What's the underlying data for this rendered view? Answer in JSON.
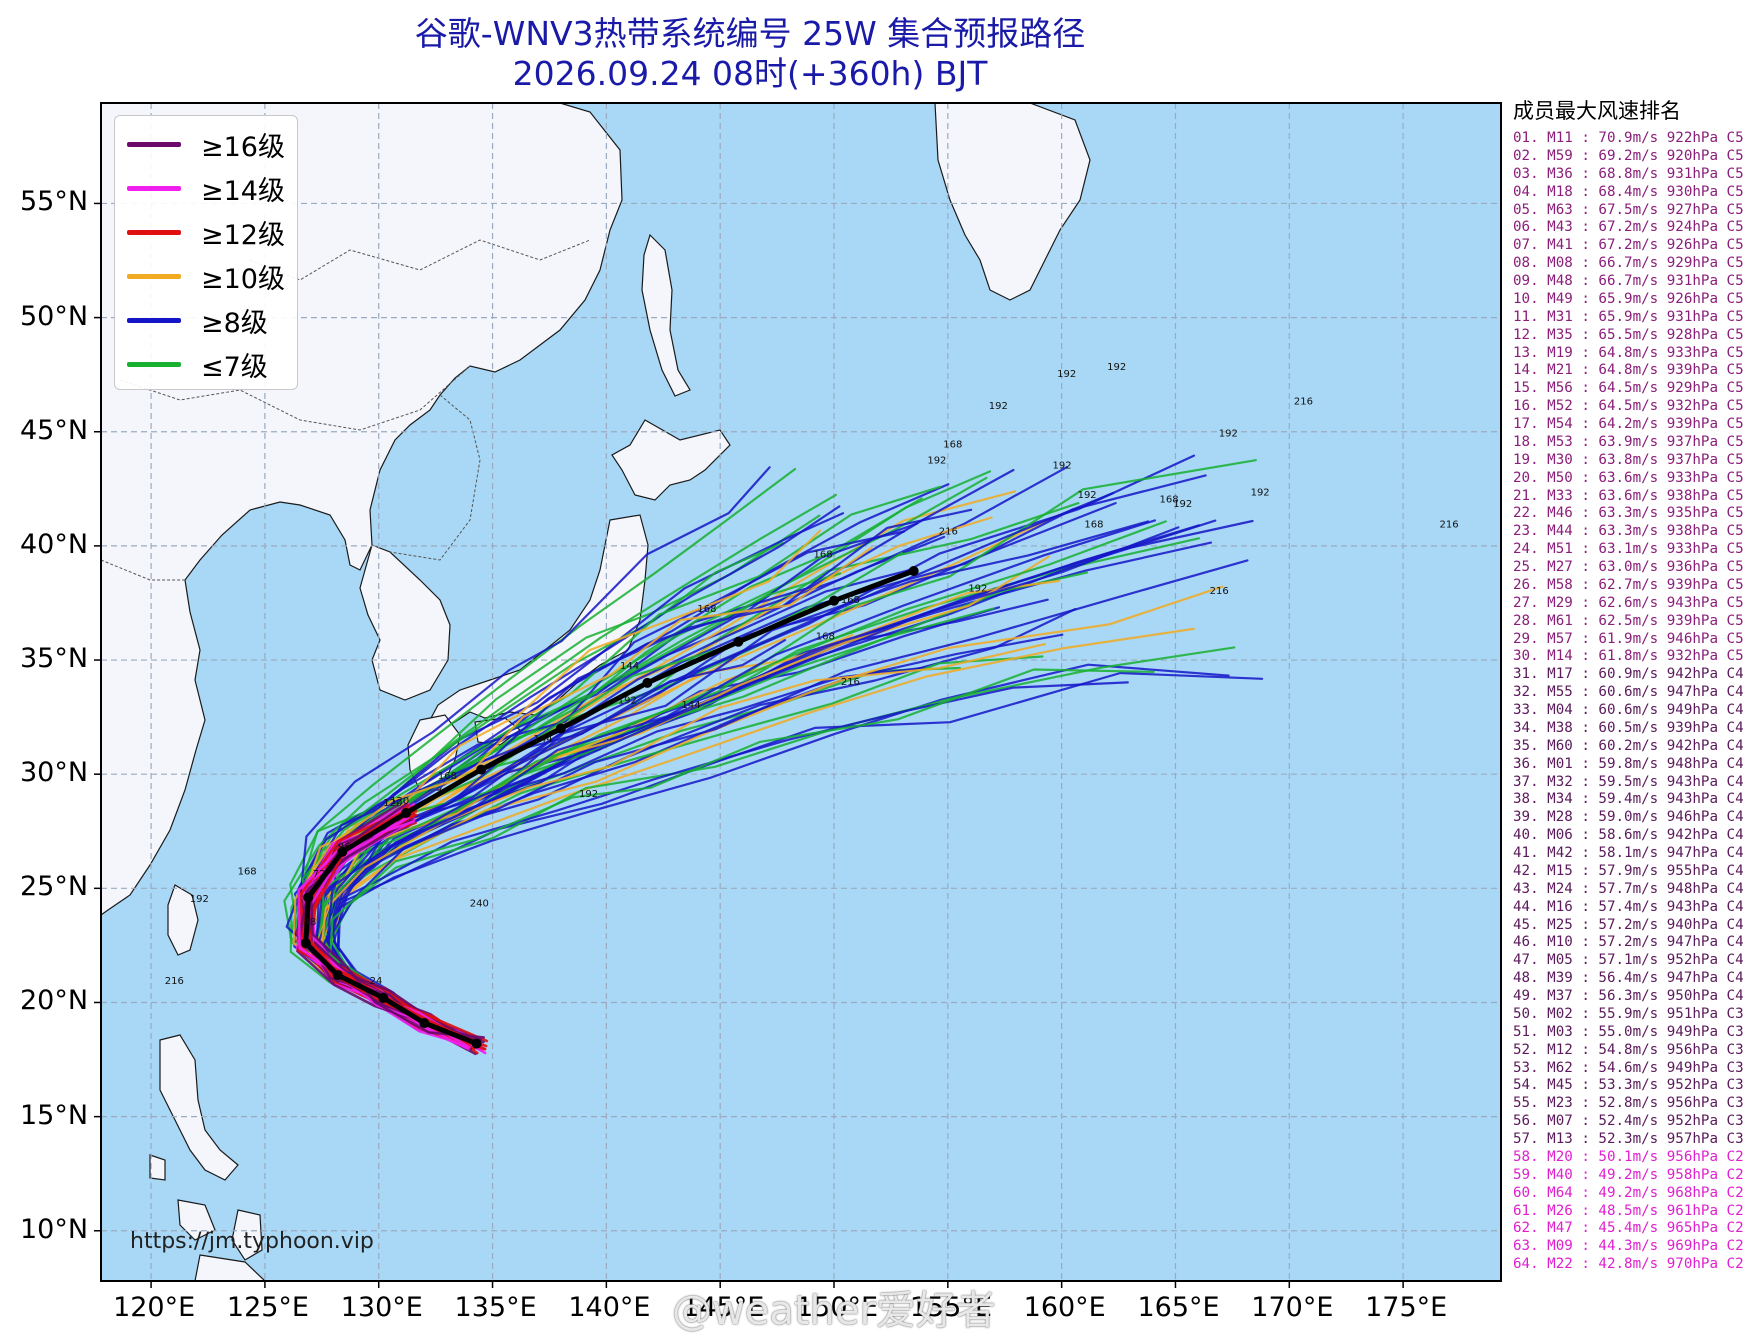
{
  "title": {
    "line1": "谷歌-WNV3热带系统编号 25W 集合预报路径",
    "line2": "2026.09.24 08时(+360h) BJT"
  },
  "legend": [
    {
      "label": "≥16级",
      "color": "#6a0a6a"
    },
    {
      "label": "≥14级",
      "color": "#f01ff0"
    },
    {
      "label": "≥12级",
      "color": "#e01010"
    },
    {
      "label": "≥10级",
      "color": "#f2aa22"
    },
    {
      "label": "≥8级",
      "color": "#1515c8"
    },
    {
      "label": "≤7级",
      "color": "#18b030"
    }
  ],
  "lat_labels": [
    "55°N",
    "50°N",
    "45°N",
    "40°N",
    "35°N",
    "30°N",
    "25°N",
    "20°N",
    "15°N",
    "10°N"
  ],
  "lon_labels": [
    "120°E",
    "125°E",
    "130°E",
    "135°E",
    "140°E",
    "145°E",
    "150°E",
    "155°E",
    "160°E",
    "165°E",
    "170°E",
    "175°E"
  ],
  "map": {
    "lon_range": [
      117.8,
      179.3
    ],
    "lat_range": [
      7.8,
      59.4
    ],
    "ocean_color": "#a8d8f6",
    "land_color": "#f4f6fb"
  },
  "source_url": "https://jm.typhoon.vip",
  "watermark": "@weather爱好者",
  "ranking": {
    "title": "成员最大风速排名",
    "colors": {
      "C5": "#8b1e7a",
      "C4": "#5b1a5b",
      "C3": "#5b1a5b",
      "C2": "#e020d0"
    },
    "entries": [
      "01. M11 : 70.9m/s 922hPa C5",
      "02. M59 : 69.2m/s 920hPa C5",
      "03. M36 : 68.8m/s 931hPa C5",
      "04. M18 : 68.4m/s 930hPa C5",
      "05. M63 : 67.5m/s 927hPa C5",
      "06. M43 : 67.2m/s 924hPa C5",
      "07. M41 : 67.2m/s 926hPa C5",
      "08. M08 : 66.7m/s 929hPa C5",
      "09. M48 : 66.7m/s 931hPa C5",
      "10. M49 : 65.9m/s 926hPa C5",
      "11. M31 : 65.9m/s 931hPa C5",
      "12. M35 : 65.5m/s 928hPa C5",
      "13. M19 : 64.8m/s 933hPa C5",
      "14. M21 : 64.8m/s 939hPa C5",
      "15. M56 : 64.5m/s 929hPa C5",
      "16. M52 : 64.5m/s 932hPa C5",
      "17. M54 : 64.2m/s 939hPa C5",
      "18. M53 : 63.9m/s 937hPa C5",
      "19. M30 : 63.8m/s 937hPa C5",
      "20. M50 : 63.6m/s 933hPa C5",
      "21. M33 : 63.6m/s 938hPa C5",
      "22. M46 : 63.3m/s 935hPa C5",
      "23. M44 : 63.3m/s 938hPa C5",
      "24. M51 : 63.1m/s 933hPa C5",
      "25. M27 : 63.0m/s 936hPa C5",
      "26. M58 : 62.7m/s 939hPa C5",
      "27. M29 : 62.6m/s 943hPa C5",
      "28. M61 : 62.5m/s 939hPa C5",
      "29. M57 : 61.9m/s 946hPa C5",
      "30. M14 : 61.8m/s 932hPa C5",
      "31. M17 : 60.9m/s 942hPa C4",
      "32. M55 : 60.6m/s 947hPa C4",
      "33. M04 : 60.6m/s 949hPa C4",
      "34. M38 : 60.5m/s 939hPa C4",
      "35. M60 : 60.2m/s 942hPa C4",
      "36. M01 : 59.8m/s 948hPa C4",
      "37. M32 : 59.5m/s 943hPa C4",
      "38. M34 : 59.4m/s 943hPa C4",
      "39. M28 : 59.0m/s 946hPa C4",
      "40. M06 : 58.6m/s 942hPa C4",
      "41. M42 : 58.1m/s 947hPa C4",
      "42. M15 : 57.9m/s 955hPa C4",
      "43. M24 : 57.7m/s 948hPa C4",
      "44. M16 : 57.4m/s 943hPa C4",
      "45. M25 : 57.2m/s 940hPa C4",
      "46. M10 : 57.2m/s 947hPa C4",
      "47. M05 : 57.1m/s 952hPa C4",
      "48. M39 : 56.4m/s 947hPa C4",
      "49. M37 : 56.3m/s 950hPa C4",
      "50. M02 : 55.9m/s 951hPa C3",
      "51. M03 : 55.0m/s 949hPa C3",
      "52. M12 : 54.8m/s 956hPa C3",
      "53. M62 : 54.6m/s 949hPa C3",
      "54. M45 : 53.3m/s 952hPa C3",
      "55. M23 : 52.8m/s 956hPa C3",
      "56. M07 : 52.4m/s 952hPa C3",
      "57. M13 : 52.3m/s 957hPa C3",
      "58. M20 : 50.1m/s 956hPa C2",
      "59. M40 : 49.2m/s 958hPa C2",
      "60. M64 : 49.2m/s 968hPa C2",
      "61. M26 : 48.5m/s 961hPa C2",
      "62. M47 : 45.4m/s 965hPa C2",
      "63. M09 : 44.3m/s 969hPa C2",
      "64. M22 : 42.8m/s 970hPa C2"
    ]
  },
  "mean_track": [
    [
      134.3,
      18.2
    ],
    [
      132.0,
      19.1
    ],
    [
      130.2,
      20.2
    ],
    [
      128.2,
      21.2
    ],
    [
      126.8,
      22.6
    ],
    [
      126.9,
      24.6
    ],
    [
      128.4,
      26.6
    ],
    [
      131.2,
      28.3
    ],
    [
      134.5,
      30.2
    ],
    [
      138.0,
      32.0
    ],
    [
      141.8,
      34.0
    ],
    [
      145.8,
      35.8
    ],
    [
      150.0,
      37.6
    ],
    [
      153.5,
      38.9
    ]
  ],
  "track_labels": [
    {
      "text": "24",
      "lon": 129.6,
      "lat": 20.8
    },
    {
      "text": "48",
      "lon": 126.7,
      "lat": 23.4
    },
    {
      "text": "72",
      "lon": 127.1,
      "lat": 25.5
    },
    {
      "text": "96",
      "lon": 128.2,
      "lat": 26.7
    },
    {
      "text": "120",
      "lon": 130.2,
      "lat": 28.6
    },
    {
      "text": "144",
      "lon": 136.8,
      "lat": 31.4
    },
    {
      "text": "144",
      "lon": 140.6,
      "lat": 34.6
    },
    {
      "text": "144",
      "lon": 143.3,
      "lat": 32.9
    },
    {
      "text": "168",
      "lon": 123.8,
      "lat": 25.6
    },
    {
      "text": "192",
      "lon": 121.7,
      "lat": 24.4
    },
    {
      "text": "216",
      "lon": 120.6,
      "lat": 20.8
    },
    {
      "text": "240",
      "lon": 134.0,
      "lat": 24.2
    },
    {
      "text": "168",
      "lon": 144.0,
      "lat": 37.1
    },
    {
      "text": "168",
      "lon": 149.1,
      "lat": 39.5
    },
    {
      "text": "168",
      "lon": 154.8,
      "lat": 44.3
    },
    {
      "text": "168",
      "lon": 149.2,
      "lat": 35.9
    },
    {
      "text": "168",
      "lon": 150.3,
      "lat": 37.5
    },
    {
      "text": "168",
      "lon": 164.3,
      "lat": 41.9
    },
    {
      "text": "168",
      "lon": 161.0,
      "lat": 40.8
    },
    {
      "text": "192",
      "lon": 154.1,
      "lat": 43.6
    },
    {
      "text": "192",
      "lon": 156.8,
      "lat": 46.0
    },
    {
      "text": "192",
      "lon": 159.8,
      "lat": 47.4
    },
    {
      "text": "192",
      "lon": 162.0,
      "lat": 47.7
    },
    {
      "text": "192",
      "lon": 159.6,
      "lat": 43.4
    },
    {
      "text": "192",
      "lon": 160.7,
      "lat": 42.1
    },
    {
      "text": "192",
      "lon": 164.9,
      "lat": 41.7
    },
    {
      "text": "192",
      "lon": 168.3,
      "lat": 42.2
    },
    {
      "text": "192",
      "lon": 166.9,
      "lat": 44.8
    },
    {
      "text": "192",
      "lon": 155.9,
      "lat": 38.0
    },
    {
      "text": "216",
      "lon": 170.2,
      "lat": 46.2
    },
    {
      "text": "216",
      "lon": 176.6,
      "lat": 40.8
    },
    {
      "text": "216",
      "lon": 166.5,
      "lat": 37.9
    },
    {
      "text": "216",
      "lon": 150.3,
      "lat": 33.9
    },
    {
      "text": "216",
      "lon": 154.6,
      "lat": 40.5
    },
    {
      "text": "192",
      "lon": 140.5,
      "lat": 33.1
    },
    {
      "text": "192",
      "lon": 138.8,
      "lat": 29.0
    },
    {
      "text": "120",
      "lon": 130.5,
      "lat": 28.7
    },
    {
      "text": "168",
      "lon": 132.6,
      "lat": 29.8
    }
  ]
}
